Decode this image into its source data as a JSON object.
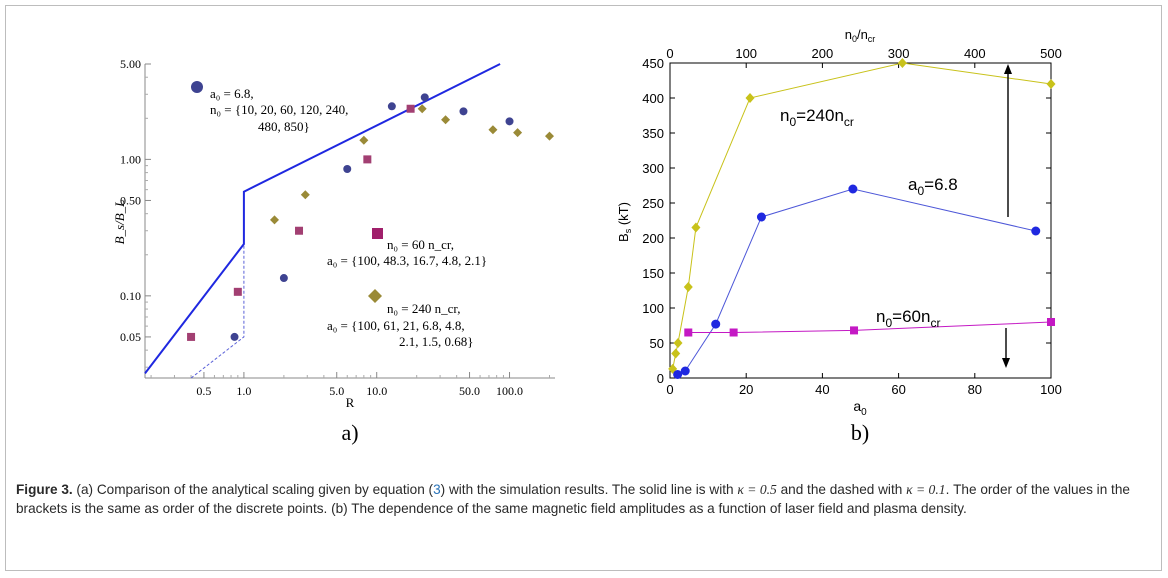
{
  "panel_a": {
    "label": "a)",
    "xlabel": "R",
    "ylabel": "B_s/B_L",
    "xticks": [
      "0.5",
      "1.0",
      "5.0",
      "10.0",
      "50.0",
      "100.0"
    ],
    "yticks": [
      "0.05",
      "0.10",
      "0.50",
      "1.00",
      "5.00"
    ],
    "annotations": {
      "a0_group": {
        "line1": "a₀ = 6.8,",
        "line2": "n₀ = {10,  20,  60,  120,  240,",
        "line3": "480,  850}"
      },
      "n60_group": {
        "line1": "n₀ = 60 n_cr,",
        "line2": "a₀ = {100,  48.3,  16.7,  4.8,  2.1}"
      },
      "n240_group": {
        "line1": "n₀ = 240 n_cr,",
        "line2": "a₀ = {100,  61,  21,  6.8,  4.8,",
        "line3": "2.1,  1.5,  0.68}"
      }
    }
  },
  "panel_b": {
    "label": "b)",
    "xlabel": "a₀",
    "ylabel": "B_s (kT)",
    "top_xlabel": "n₀/n_cr",
    "xticks": [
      "0",
      "20",
      "40",
      "60",
      "80",
      "100"
    ],
    "top_xticks": [
      "0",
      "100",
      "200",
      "300",
      "400",
      "500"
    ],
    "yticks": [
      "0",
      "50",
      "100",
      "150",
      "200",
      "250",
      "300",
      "350",
      "400",
      "450"
    ],
    "series_labels": {
      "n240": "n₀=240n_cr",
      "a68": "a₀=6.8",
      "n60": "n₀=60n_cr"
    }
  },
  "caption": {
    "figure": "Figure 3.",
    "part1": " (a) Comparison of the analytical scaling given by equation (",
    "eq": "3",
    "part2": ") with the simulation results. The solid line is with ",
    "kappa1": "κ = 0.5",
    "part3": " and the dashed with ",
    "kappa2": "κ = 0.1",
    "part4": ". The order of the values in the brackets is the same as order of the discrete points. (b) The dependence of the same magnetic field amplitudes as a function of laser field and plasma density."
  },
  "colors": {
    "blue": "#1f28e0",
    "blue_marker": "#3e4391",
    "magenta_marker": "#a23f72",
    "olive_marker": "#9a8a37",
    "yellow": "#c8c21a",
    "magenta_line": "#c419c4",
    "blue_line": "#4d57d8"
  },
  "chart_data": [
    {
      "type": "scatter",
      "x_scale": "log",
      "y_scale": "log",
      "xlabel": "R",
      "ylabel": "B_s/B_L",
      "xlim": [
        0.18,
        220
      ],
      "ylim": [
        0.025,
        5
      ],
      "series": [
        {
          "name": "a₀ = 6.8",
          "x": [
            0.85,
            2.0,
            6.0,
            13.0,
            23.0,
            45.0,
            100.0
          ],
          "y": [
            0.05,
            0.135,
            0.85,
            2.45,
            2.85,
            2.25,
            1.9
          ]
        },
        {
          "name": "n₀ = 60 n_cr",
          "x": [
            0.4,
            0.9,
            2.6,
            8.5,
            18.0
          ],
          "y": [
            0.05,
            0.107,
            0.3,
            1.0,
            2.35
          ]
        },
        {
          "name": "n₀ = 240 n_cr",
          "x": [
            1.7,
            2.9,
            8.0,
            22.0,
            33.0,
            75.0,
            115.0,
            200.0
          ],
          "y": [
            0.36,
            0.55,
            1.38,
            2.35,
            1.95,
            1.65,
            1.57,
            1.48
          ]
        }
      ],
      "lines": [
        {
          "style": "solid",
          "x": [
            0.18,
            1.0,
            1.0,
            85.0
          ],
          "y": [
            0.027,
            0.24,
            0.58,
            5.0
          ]
        },
        {
          "style": "dashed",
          "x": [
            0.4,
            1.0,
            1.0
          ],
          "y": [
            0.025,
            0.05,
            0.24
          ]
        }
      ]
    },
    {
      "type": "line",
      "xlabel": "a₀",
      "ylabel": "B_s (kT)",
      "top_xlabel": "n₀/n_cr",
      "xlim": [
        0,
        100
      ],
      "ylim": [
        0,
        450
      ],
      "top_xlim": [
        0,
        500
      ],
      "series": [
        {
          "name": "n₀=240n_cr",
          "x": [
            0.7,
            1.5,
            2.1,
            4.8,
            6.8,
            21,
            61,
            100
          ],
          "y": [
            13,
            35,
            50,
            130,
            215,
            400,
            450,
            420
          ]
        },
        {
          "name": "a₀=6.8",
          "x": [
            2.0,
            4.0,
            12.0,
            24.0,
            48.0,
            96.0
          ],
          "y": [
            5,
            10,
            77,
            230,
            270,
            210
          ]
        },
        {
          "name": "n₀=60n_cr",
          "x": [
            4.8,
            16.7,
            48.3,
            100
          ],
          "y": [
            65,
            65,
            68,
            80
          ]
        }
      ]
    }
  ]
}
